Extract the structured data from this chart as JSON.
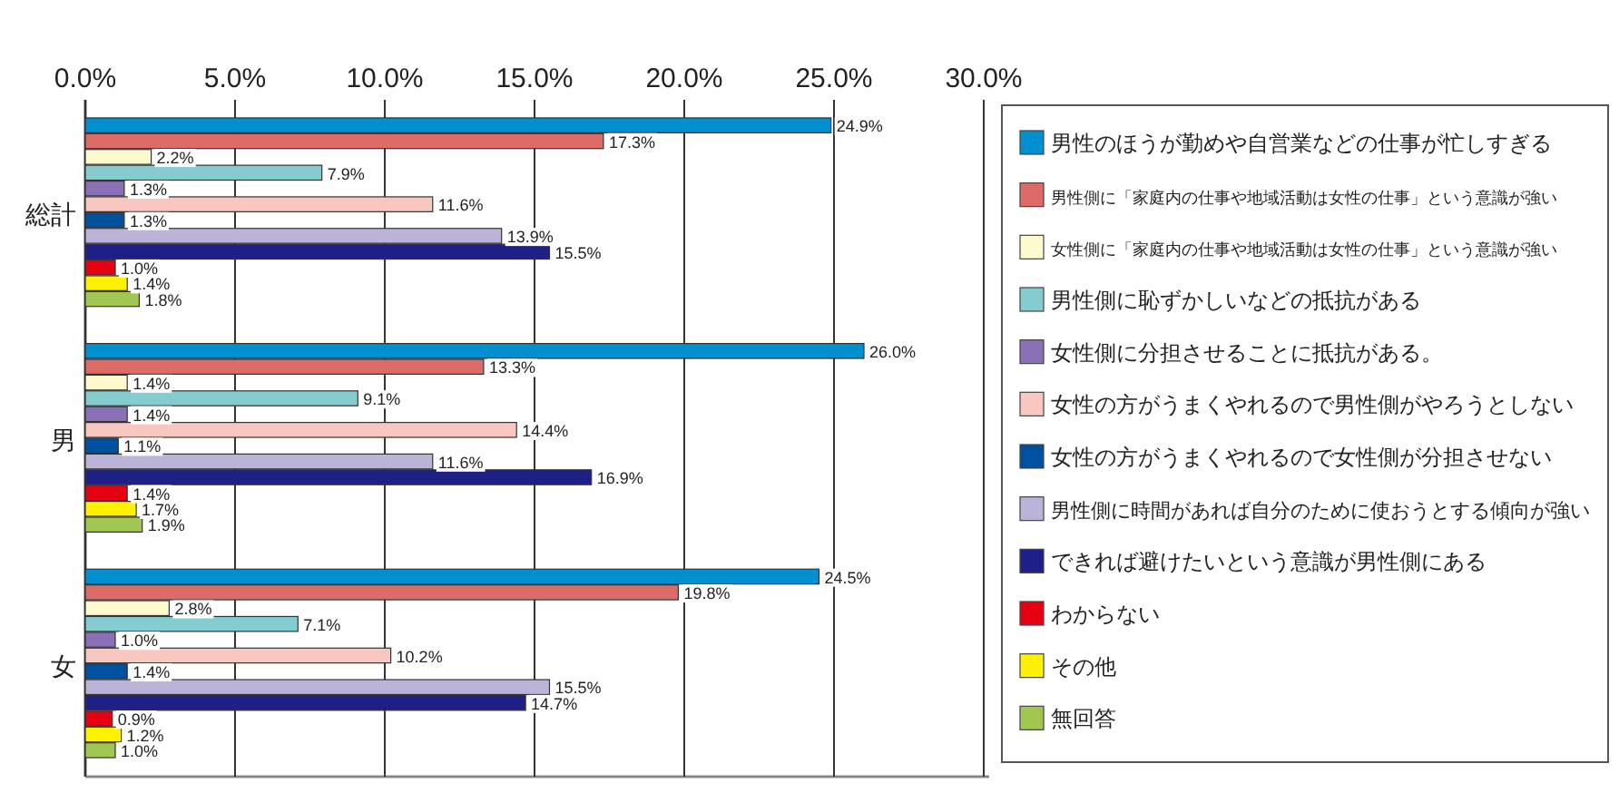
{
  "chart_data": {
    "type": "bar",
    "orientation": "horizontal",
    "categories": [
      "総計",
      "男",
      "女"
    ],
    "xlim": [
      0,
      30
    ],
    "xticks": [
      {
        "value": 0,
        "label": "0.0%"
      },
      {
        "value": 5,
        "label": "5.0%"
      },
      {
        "value": 10,
        "label": "10.0%"
      },
      {
        "value": 15,
        "label": "15.0%"
      },
      {
        "value": 20,
        "label": "20.0%"
      },
      {
        "value": 25,
        "label": "25.0%"
      },
      {
        "value": 30,
        "label": "30.0%"
      }
    ],
    "grid": "x",
    "legend": "right",
    "series": [
      {
        "name": "男性のほうが勤めや自営業などの仕事が忙しすぎる",
        "color": "#0090d0",
        "values": [
          24.9,
          26.0,
          24.5
        ],
        "value_labels": [
          "24.9%",
          "26.0%",
          "24.5%"
        ]
      },
      {
        "name": "男性側に「家庭内の仕事や地域活動は女性の仕事」という意識が強い",
        "color": "#dd6b68",
        "values": [
          17.3,
          13.3,
          19.8
        ],
        "value_labels": [
          "17.3%",
          "13.3%",
          "19.8%"
        ]
      },
      {
        "name": "女性側に「家庭内の仕事や地域活動は女性の仕事」という意識が強い",
        "color": "#fffacd",
        "values": [
          2.2,
          1.4,
          2.8
        ],
        "value_labels": [
          "2.2%",
          "1.4%",
          "2.8%"
        ]
      },
      {
        "name": "男性側に恥ずかしいなどの抵抗がある",
        "color": "#84ccd0",
        "values": [
          7.9,
          9.1,
          7.1
        ],
        "value_labels": [
          "7.9%",
          "9.1%",
          "7.1%"
        ]
      },
      {
        "name": "女性側に分担させることに抵抗がある。",
        "color": "#8a70b4",
        "values": [
          1.3,
          1.4,
          1.0
        ],
        "value_labels": [
          "1.3%",
          "1.4%",
          "1.0%"
        ]
      },
      {
        "name": "女性の方がうまくやれるので男性側がやろうとしない",
        "color": "#f8c8c0",
        "values": [
          11.6,
          14.4,
          10.2
        ],
        "value_labels": [
          "11.6%",
          "14.4%",
          "10.2%"
        ]
      },
      {
        "name": "女性の方がうまくやれるので女性側が分担させない",
        "color": "#0050a0",
        "values": [
          1.3,
          1.1,
          1.4
        ],
        "value_labels": [
          "1.3%",
          "1.1%",
          "1.4%"
        ]
      },
      {
        "name": "男性側に時間があれば自分のために使おうとする傾向が強い",
        "color": "#bcb4d8",
        "values": [
          13.9,
          11.6,
          15.5
        ],
        "value_labels": [
          "13.9%",
          "11.6%",
          "15.5%"
        ]
      },
      {
        "name": "できれば避けたいという意識が男性側にある",
        "color": "#1e2088",
        "values": [
          15.5,
          16.9,
          14.7
        ],
        "value_labels": [
          "15.5%",
          "16.9%",
          "14.7%"
        ]
      },
      {
        "name": "わからない",
        "color": "#e60012",
        "values": [
          1.0,
          1.4,
          0.9
        ],
        "value_labels": [
          "1.0%",
          "1.4%",
          "0.9%"
        ]
      },
      {
        "name": "その他",
        "color": "#fff100",
        "values": [
          1.4,
          1.7,
          1.2
        ],
        "value_labels": [
          "1.4%",
          "1.7%",
          "1.2%"
        ]
      },
      {
        "name": "無回答",
        "color": "#a0c850",
        "values": [
          1.8,
          1.9,
          1.0
        ],
        "value_labels": [
          "1.8%",
          "1.9%",
          "1.0%"
        ]
      }
    ]
  }
}
